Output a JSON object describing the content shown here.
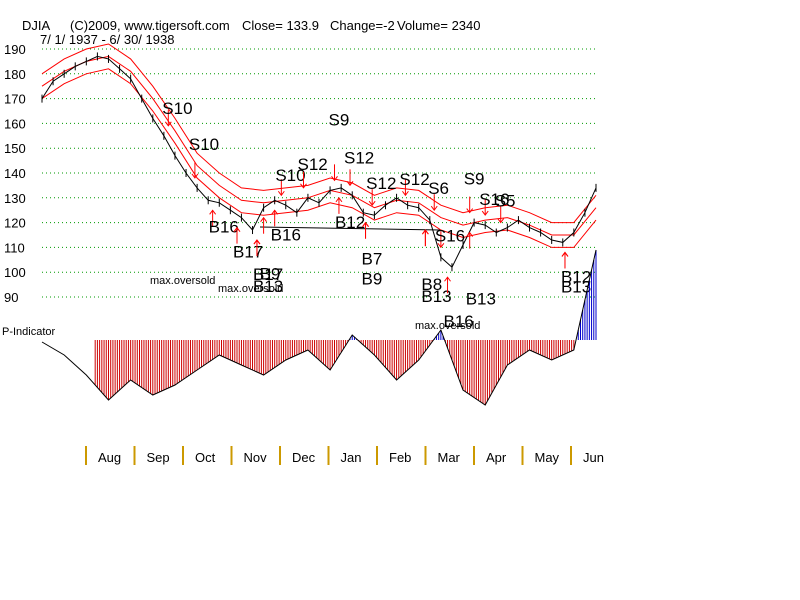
{
  "header": {
    "symbol": "DJIA",
    "copyright": "(C)2009, www.tigersoft.com",
    "close": "Close=  133.9",
    "change": "Change=-2",
    "volume": "Volume= 2340",
    "range": "7/ 1/ 1937 - 6/ 30/ 1938"
  },
  "colors": {
    "price": "#000000",
    "bands": "#ff0000",
    "grid": "#009900",
    "pind_neg": "#cc0000",
    "pind_pos": "#0000cc",
    "arrow": "#ff0000",
    "axis_tick": "#cc9900"
  },
  "chart_data": {
    "type": "line",
    "title": "DJIA",
    "ylim": [
      90,
      190
    ],
    "yticks": [
      190,
      180,
      170,
      160,
      150,
      140,
      130,
      120,
      110,
      100,
      90
    ],
    "months": [
      "Aug",
      "Sep",
      "Oct",
      "Nov",
      "Dec",
      "Jan",
      "Feb",
      "Mar",
      "Apr",
      "May",
      "Jun"
    ],
    "series": [
      {
        "name": "DJIA",
        "x": [
          0,
          5,
          10,
          15,
          20,
          25,
          30,
          35,
          40,
          45,
          50,
          55,
          60,
          65,
          70,
          75,
          80,
          85,
          90,
          95,
          100,
          105,
          110,
          115,
          120,
          125,
          130,
          135,
          140,
          145,
          150,
          155,
          160,
          165,
          170,
          175,
          180,
          185,
          190,
          195,
          200,
          205,
          210,
          215,
          220,
          225,
          230,
          235,
          240,
          245,
          250
        ],
        "values": [
          170,
          177,
          180,
          183,
          185,
          187,
          186,
          182,
          178,
          170,
          162,
          155,
          147,
          140,
          134,
          129,
          128,
          125,
          122,
          117,
          126,
          129,
          127,
          124,
          130,
          128,
          133,
          134,
          131,
          124,
          123,
          127,
          130,
          127,
          126,
          121,
          106,
          102,
          111,
          120,
          119,
          116,
          118,
          121,
          118,
          116,
          113,
          112,
          116,
          124,
          134
        ]
      },
      {
        "name": "Upper band",
        "x": [
          0,
          10,
          20,
          30,
          40,
          50,
          60,
          70,
          80,
          90,
          100,
          110,
          120,
          130,
          140,
          150,
          160,
          170,
          180,
          190,
          200,
          210,
          220,
          230,
          240,
          250
        ],
        "values": [
          180,
          186,
          190,
          192,
          186,
          175,
          162,
          148,
          140,
          134,
          133,
          134,
          135,
          138,
          136,
          131,
          134,
          133,
          127,
          124,
          126,
          127,
          124,
          120,
          120,
          131
        ]
      },
      {
        "name": "Middle band",
        "x": [
          0,
          10,
          20,
          30,
          40,
          50,
          60,
          70,
          80,
          90,
          100,
          110,
          120,
          130,
          140,
          150,
          160,
          170,
          180,
          190,
          200,
          210,
          220,
          230,
          240,
          250
        ],
        "values": [
          175,
          181,
          185,
          187,
          181,
          170,
          157,
          143,
          135,
          129,
          128,
          129,
          130,
          133,
          131,
          126,
          129,
          128,
          122,
          119,
          121,
          122,
          119,
          115,
          115,
          126
        ]
      },
      {
        "name": "Lower band",
        "x": [
          0,
          10,
          20,
          30,
          40,
          50,
          60,
          70,
          80,
          90,
          100,
          110,
          120,
          130,
          140,
          150,
          160,
          170,
          180,
          190,
          200,
          210,
          220,
          230,
          240,
          250
        ],
        "values": [
          170,
          176,
          180,
          182,
          176,
          165,
          152,
          138,
          130,
          124,
          123,
          124,
          125,
          128,
          126,
          121,
          124,
          123,
          117,
          114,
          116,
          117,
          114,
          110,
          110,
          121
        ]
      }
    ],
    "pindicator": {
      "label": "P-Indicator",
      "x": [
        0,
        10,
        20,
        30,
        40,
        50,
        60,
        70,
        80,
        90,
        100,
        110,
        120,
        130,
        140,
        150,
        160,
        170,
        180,
        190,
        200,
        210,
        220,
        230,
        240,
        250
      ],
      "values": [
        -2,
        -15,
        -35,
        -60,
        -40,
        -55,
        -45,
        -30,
        -15,
        -25,
        -35,
        -20,
        -10,
        -30,
        5,
        -15,
        -40,
        -20,
        10,
        -50,
        -65,
        -25,
        -10,
        -20,
        -10,
        90
      ]
    }
  },
  "signals": {
    "sell": [
      {
        "label": "S10",
        "x": 57
      },
      {
        "label": "S10",
        "x": 69
      },
      {
        "label": "S10",
        "x": 108
      },
      {
        "label": "S12",
        "x": 118
      },
      {
        "label": "S9",
        "x": 132
      },
      {
        "label": "S12",
        "x": 139
      },
      {
        "label": "S12",
        "x": 149
      },
      {
        "label": "S12",
        "x": 164
      },
      {
        "label": "S6",
        "x": 177
      },
      {
        "label": "S16",
        "x": 180
      },
      {
        "label": "S9",
        "x": 193
      },
      {
        "label": "S16",
        "x": 200
      },
      {
        "label": "S5",
        "x": 207
      }
    ],
    "buy": [
      {
        "label": "B16",
        "x": 77
      },
      {
        "label": "B17",
        "x": 88
      },
      {
        "label": "B17",
        "x": 97
      },
      {
        "label": "B16",
        "x": 105
      },
      {
        "label": "B13",
        "x": 97
      },
      {
        "label": "B9",
        "x": 100
      },
      {
        "label": "B12",
        "x": 134
      },
      {
        "label": "B7",
        "x": 146
      },
      {
        "label": "B9",
        "x": 146
      },
      {
        "label": "B8",
        "x": 173
      },
      {
        "label": "B13",
        "x": 173
      },
      {
        "label": "B16",
        "x": 183
      },
      {
        "label": "B13",
        "x": 193
      },
      {
        "label": "B12",
        "x": 236
      },
      {
        "label": "B13",
        "x": 236
      }
    ],
    "notes": [
      "max.oversold",
      "max.oversold",
      "max.oversold"
    ]
  }
}
